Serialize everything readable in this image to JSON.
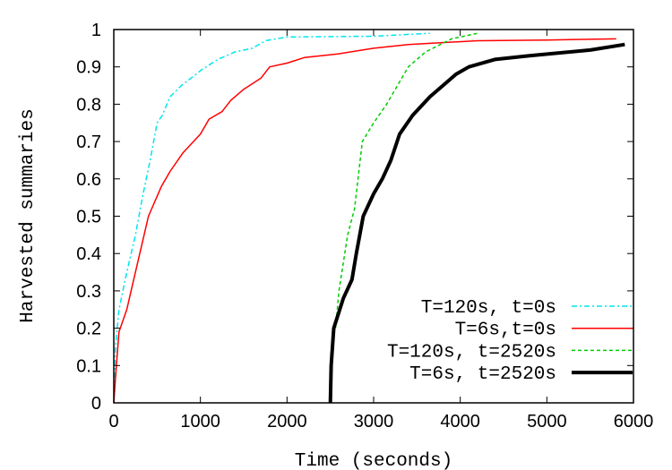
{
  "chart_data": {
    "type": "line",
    "title": "",
    "xlabel": "Time (seconds)",
    "ylabel": "Harvested summaries",
    "xlim": [
      0,
      6000
    ],
    "ylim": [
      0,
      1
    ],
    "xticks": [
      "0",
      "1000",
      "2000",
      "3000",
      "4000",
      "5000",
      "6000"
    ],
    "yticks": [
      "0",
      "0.1",
      "0.2",
      "0.3",
      "0.4",
      "0.5",
      "0.6",
      "0.7",
      "0.8",
      "0.9",
      "1"
    ],
    "grid": false,
    "legend_position": "bottom-right",
    "series": [
      {
        "name": "T=120s, t=0s",
        "color": "#00e5ee",
        "style": "dash-dot",
        "width": 1.5,
        "x": [
          0,
          20,
          60,
          150,
          250,
          330,
          420,
          500,
          560,
          650,
          780,
          950,
          1000,
          1200,
          1400,
          1600,
          1750,
          2000,
          3000,
          3650
        ],
        "y": [
          0,
          0.15,
          0.25,
          0.35,
          0.45,
          0.55,
          0.65,
          0.75,
          0.77,
          0.82,
          0.85,
          0.88,
          0.89,
          0.92,
          0.94,
          0.95,
          0.97,
          0.98,
          0.982,
          0.99
        ]
      },
      {
        "name": "T=6s,t=0s",
        "color": "#ff0000",
        "style": "solid",
        "width": 1.5,
        "x": [
          0,
          30,
          60,
          150,
          200,
          300,
          400,
          550,
          650,
          800,
          1000,
          1100,
          1250,
          1350,
          1500,
          1700,
          1800,
          2000,
          2200,
          2600,
          3000,
          3400,
          4200,
          5000,
          5800
        ],
        "y": [
          0,
          0.1,
          0.19,
          0.25,
          0.3,
          0.4,
          0.5,
          0.58,
          0.62,
          0.67,
          0.72,
          0.76,
          0.78,
          0.81,
          0.84,
          0.87,
          0.9,
          0.91,
          0.925,
          0.935,
          0.95,
          0.96,
          0.97,
          0.972,
          0.975
        ]
      },
      {
        "name": "T=120s, t=2520s",
        "color": "#00cc00",
        "style": "dashed",
        "width": 1.5,
        "x": [
          2560,
          2600,
          2700,
          2780,
          2870,
          3000,
          3150,
          3300,
          3400,
          3600,
          3900,
          4200
        ],
        "y": [
          0.2,
          0.3,
          0.45,
          0.52,
          0.7,
          0.75,
          0.8,
          0.86,
          0.9,
          0.94,
          0.975,
          0.99
        ]
      },
      {
        "name": "T=6s, t=2520s",
        "color": "#000000",
        "style": "solid",
        "width": 4,
        "x": [
          2500,
          2510,
          2540,
          2650,
          2750,
          2800,
          2880,
          3000,
          3100,
          3200,
          3300,
          3450,
          3650,
          3850,
          3950,
          4100,
          4400,
          4800,
          5500,
          5900
        ],
        "y": [
          0,
          0.1,
          0.2,
          0.28,
          0.33,
          0.4,
          0.5,
          0.56,
          0.6,
          0.65,
          0.72,
          0.77,
          0.82,
          0.86,
          0.88,
          0.9,
          0.92,
          0.93,
          0.945,
          0.96
        ]
      }
    ]
  }
}
